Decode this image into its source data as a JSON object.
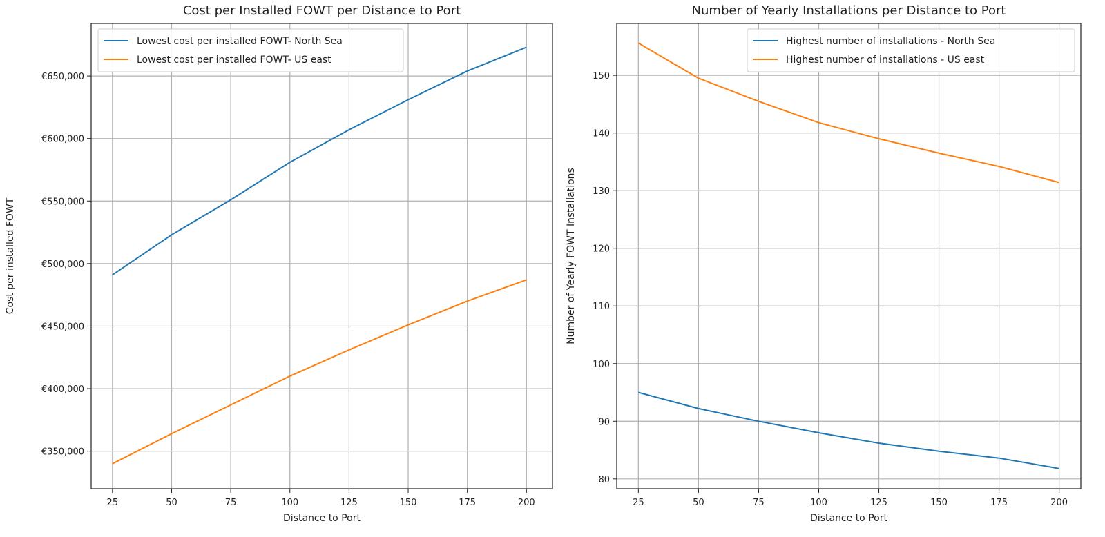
{
  "chart_data": [
    {
      "type": "line",
      "title": "Cost per Installed FOWT per Distance to Port",
      "xlabel": "Distance to Port",
      "ylabel": "Cost per installed FOWT",
      "x": [
        25,
        50,
        75,
        100,
        125,
        150,
        175,
        200
      ],
      "xlim": [
        16,
        211
      ],
      "ylim": [
        320000,
        692000
      ],
      "xticks": [
        25,
        50,
        75,
        100,
        125,
        150,
        175,
        200
      ],
      "yticks": [
        350000,
        400000,
        450000,
        500000,
        550000,
        600000,
        650000
      ],
      "ytick_labels": [
        "€350,000",
        "€400,000",
        "€450,000",
        "€500,000",
        "€550,000",
        "€600,000",
        "€650,000"
      ],
      "xtick_labels": [
        "25",
        "50",
        "75",
        "100",
        "125",
        "150",
        "175",
        "200"
      ],
      "grid": true,
      "legend_position": "top-left",
      "series": [
        {
          "name": "Lowest cost per installed FOWT- North Sea",
          "color": "#1f77b4",
          "values": [
            491000,
            523000,
            551000,
            581000,
            607000,
            631000,
            654000,
            673000
          ]
        },
        {
          "name": "Lowest cost per installed FOWT- US east",
          "color": "#ff7f0e",
          "values": [
            340000,
            364000,
            387000,
            410000,
            431000,
            451000,
            470000,
            487000
          ]
        }
      ]
    },
    {
      "type": "line",
      "title": "Number of Yearly Installations per Distance to Port",
      "xlabel": "Distance to Port",
      "ylabel": "Number of Yearly FOWT Installations",
      "x": [
        25,
        50,
        75,
        100,
        125,
        150,
        175,
        200
      ],
      "xlim": [
        16,
        209
      ],
      "ylim": [
        78.3,
        159
      ],
      "xticks": [
        25,
        50,
        75,
        100,
        125,
        150,
        175,
        200
      ],
      "yticks": [
        80,
        90,
        100,
        110,
        120,
        130,
        140,
        150
      ],
      "ytick_labels": [
        "80",
        "90",
        "100",
        "110",
        "120",
        "130",
        "140",
        "150"
      ],
      "xtick_labels": [
        "25",
        "50",
        "75",
        "100",
        "125",
        "150",
        "175",
        "200"
      ],
      "grid": true,
      "legend_position": "top-right",
      "series": [
        {
          "name": "Highest number of installations - North Sea",
          "color": "#1f77b4",
          "values": [
            95.0,
            92.2,
            90.0,
            88.0,
            86.2,
            84.8,
            83.6,
            81.8
          ]
        },
        {
          "name": "Highest number of installations - US east",
          "color": "#ff7f0e",
          "values": [
            155.6,
            149.5,
            145.5,
            141.8,
            139.0,
            136.5,
            134.2,
            131.4
          ]
        }
      ]
    }
  ]
}
